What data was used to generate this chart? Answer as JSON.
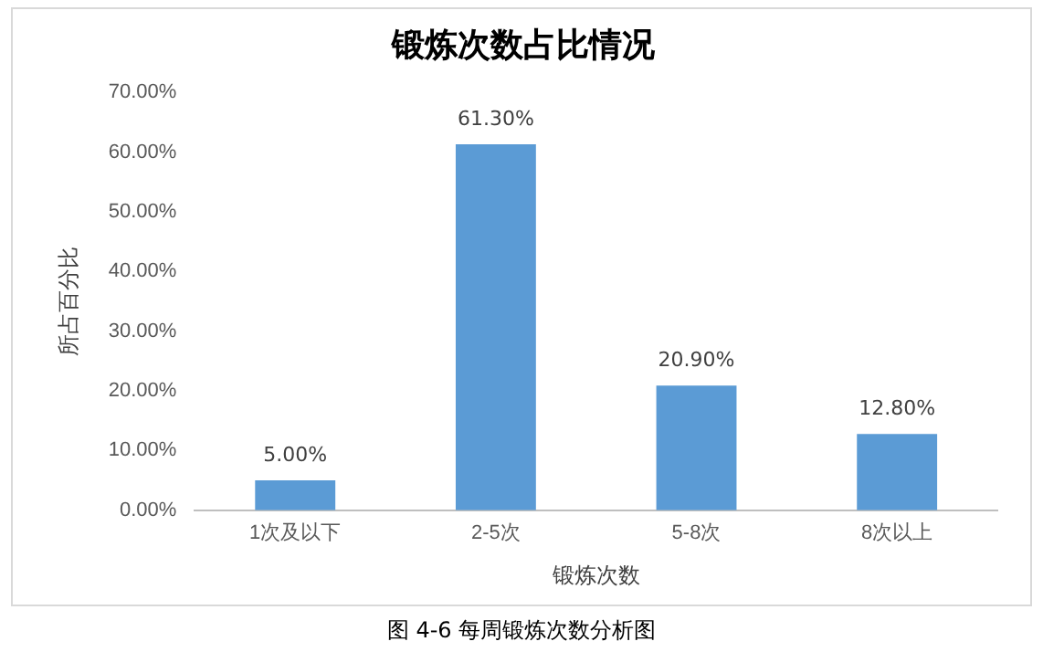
{
  "chart_data": {
    "type": "bar",
    "title": "锻炼次数占比情况",
    "xlabel": "锻炼次数",
    "ylabel": "所占百分比",
    "categories": [
      "1次及以下",
      "2-5次",
      "5-8次",
      "8次以上"
    ],
    "values": [
      5,
      61.3,
      20.9,
      12.8
    ],
    "value_labels": [
      "5.00%",
      "61.30%",
      "20.90%",
      "12.80%"
    ],
    "color": "#5b9bd5",
    "ylim": [
      0,
      70
    ],
    "yticks": [
      {
        "value": 0,
        "label": "0.00%"
      },
      {
        "value": 10,
        "label": "10.00%"
      },
      {
        "value": 20,
        "label": "20.00%"
      },
      {
        "value": 30,
        "label": "30.00%"
      },
      {
        "value": 40,
        "label": "40.00%"
      },
      {
        "value": 50,
        "label": "50.00%"
      },
      {
        "value": 60,
        "label": "60.00%"
      },
      {
        "value": 70,
        "label": "70.00%"
      }
    ],
    "grid": false,
    "legend": false,
    "annotations": [
      "图 4-6 每周锻炼次数分析图"
    ]
  }
}
